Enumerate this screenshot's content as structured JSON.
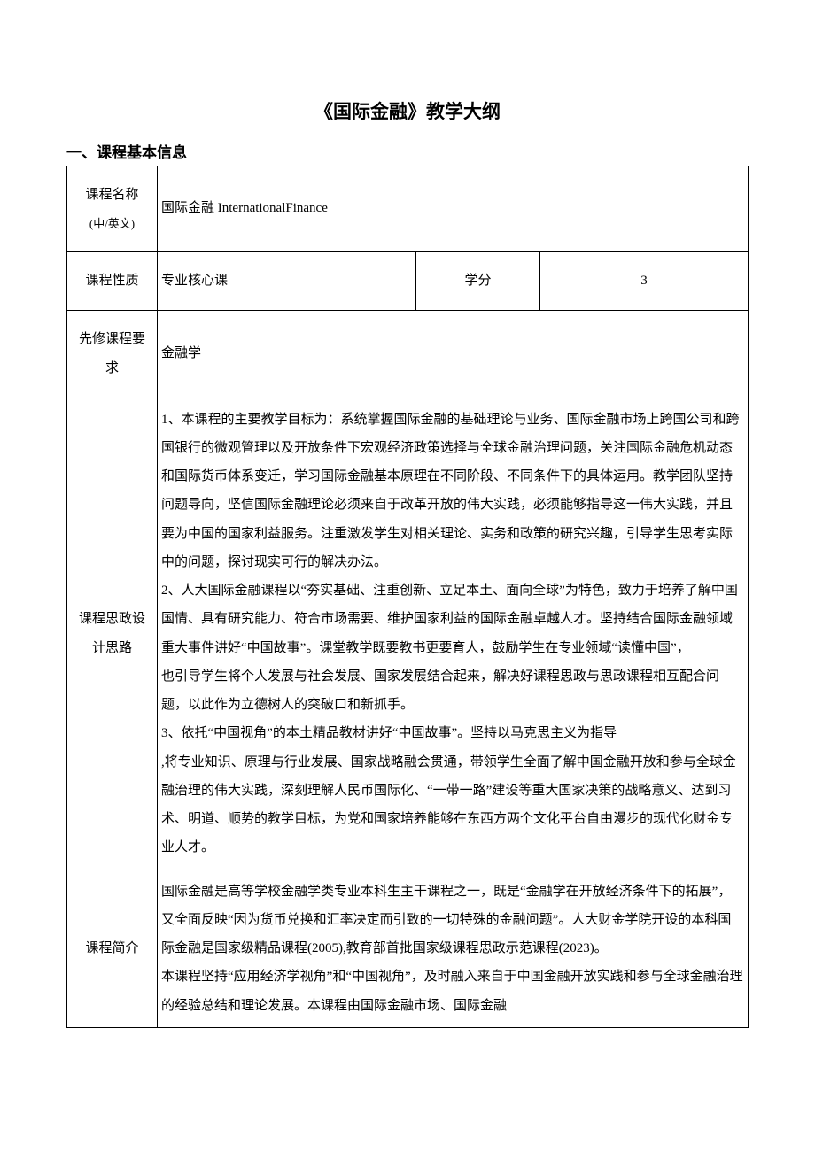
{
  "doc": {
    "title": "《国际金融》教学大纲",
    "section1_title": "一、课程基本信息"
  },
  "table": {
    "row1": {
      "label_line1": "课程名称",
      "label_line2": "(中/英文)",
      "value": "国际金融 InternationalFinance"
    },
    "row2": {
      "label": "课程性质",
      "value": "专业核心课",
      "credit_label": "学分",
      "credit_value": "3"
    },
    "row3": {
      "label": "先修课程要求",
      "value": "金融学"
    },
    "row4": {
      "label": "课程思政设计思路",
      "value": "1、本课程的主要教学目标为：系统掌握国际金融的基础理论与业务、国际金融市场上跨国公司和跨国银行的微观管理以及开放条件下宏观经济政策选择与全球金融治理问题，关注国际金融危机动态和国际货币体系变迁，学习国际金融基本原理在不同阶段、不同条件下的具体运用。教学团队坚持问题导向，坚信国际金融理论必须来自于改革开放的伟大实践，必须能够指导这一伟大实践，并且要为中国的国家利益服务。注重激发学生对相关理论、实务和政策的研究兴趣，引导学生思考实际中的问题，探讨现实可行的解决办法。\n2、人大国际金融课程以“夯实基础、注重创新、立足本土、面向全球”为特色，致力于培养了解中国国情、具有研究能力、符合市场需要、维护国家利益的国际金融卓越人才。坚持结合国际金融领域重大事件讲好“中国故事”。课堂教学既要教书更要育人，鼓励学生在专业领域“读懂中国”，\n也引导学生将个人发展与社会发展、国家发展结合起来，解决好课程思政与思政课程相互配合问题，以此作为立德树人的突破口和新抓手。\n3、依托“中国视角”的本土精品教材讲好“中国故事”。坚持以马克思主义为指导\n,将专业知识、原理与行业发展、国家战略融会贯通，带领学生全面了解中国金融开放和参与全球金融治理的伟大实践，深刻理解人民币国际化、“一带一路”建设等重大国家决策的战略意义、达到习术、明道、顺势的教学目标，为党和国家培养能够在东西方两个文化平台自由漫步的现代化财金专业人才。"
    },
    "row5": {
      "label": "课程简介",
      "value": "国际金融是高等学校金融学类专业本科生主干课程之一，既是“金融学在开放经济条件下的拓展”，又全面反映“因为货币兑换和汇率决定而引致的一切特殊的金融问题”。人大财金学院开设的本科国际金融是国家级精品课程(2005),教育部首批国家级课程思政示范课程(2023)。\n本课程坚持“应用经济学视角”和“中国视角”，及时融入来自于中国金融开放实践和参与全球金融治理的经验总结和理论发展。本课程由国际金融市场、国际金融"
    }
  },
  "style": {
    "background_color": "#ffffff",
    "border_color": "#000000",
    "title_fontsize": 21,
    "section_fontsize": 17,
    "body_fontsize": 15,
    "line_height": 2.2
  }
}
